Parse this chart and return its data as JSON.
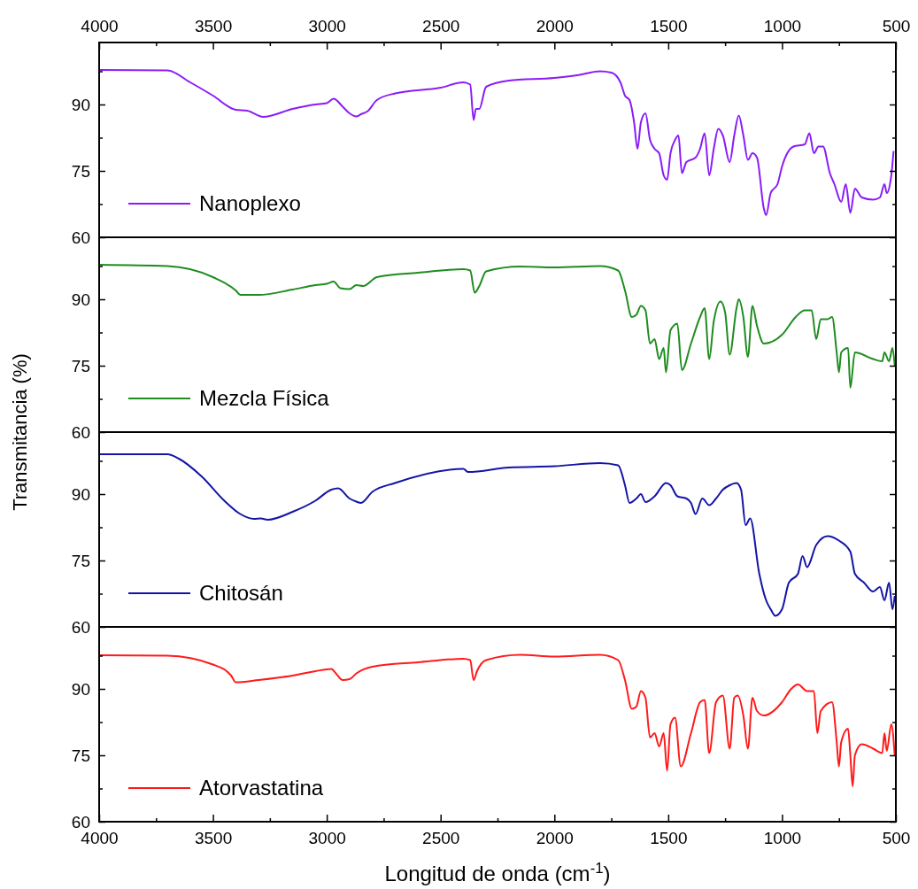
{
  "chart_data": [
    {
      "type": "line",
      "ylabel": "Transmitancia (%)",
      "xlim": [
        4000,
        500
      ],
      "ylim": [
        60,
        104
      ],
      "x2lim": [
        4000,
        500
      ],
      "x2ticks": [
        4000,
        {
          "value": 3750,
          "label": null
        },
        3500,
        {
          "value": 3250,
          "label": null
        },
        3000,
        {
          "value": 2750,
          "label": null
        },
        2500,
        {
          "value": 2250,
          "label": null
        },
        2000,
        {
          "value": 1750,
          "label": null
        },
        1500,
        {
          "value": 1250,
          "label": null
        },
        1000,
        {
          "value": 750,
          "label": null
        },
        500
      ],
      "yticks": [
        60,
        {
          "value": 67.5,
          "label": null
        },
        75,
        {
          "value": 82.5,
          "label": null
        },
        90,
        {
          "value": 97.5,
          "label": null
        }
      ],
      "tick_labels": "y",
      "legend": "bottom left",
      "grid": false,
      "x": [
        4000,
        3700,
        3600,
        3500,
        3400,
        3350,
        3280,
        3150,
        3050,
        3000,
        2970,
        2930,
        2900,
        2870,
        2850,
        2820,
        2780,
        2700,
        2500,
        2400,
        2370,
        2355,
        2345,
        2330,
        2300,
        2200,
        2000,
        1900,
        1800,
        1750,
        1710,
        1690,
        1670,
        1650,
        1635,
        1620,
        1600,
        1580,
        1560,
        1540,
        1520,
        1505,
        1490,
        1470,
        1455,
        1440,
        1420,
        1380,
        1360,
        1340,
        1320,
        1300,
        1280,
        1260,
        1230,
        1210,
        1190,
        1170,
        1150,
        1130,
        1110,
        1080,
        1070,
        1050,
        1020,
        1000,
        950,
        900,
        880,
        860,
        840,
        820,
        790,
        770,
        740,
        720,
        700,
        680,
        650,
        600,
        570,
        550,
        540,
        520,
        510
      ],
      "series": [
        {
          "name": "Nanoplexo",
          "color": "#8a1cf7",
          "values": [
            97.8,
            97.7,
            95,
            92,
            88.8,
            88.6,
            87.2,
            89,
            90,
            90.3,
            91.3,
            89.5,
            88,
            87.3,
            87.8,
            88.5,
            91,
            92.5,
            93.8,
            95,
            94.5,
            86.5,
            89,
            89,
            94,
            95.4,
            96,
            96.6,
            97.5,
            97.2,
            95,
            92,
            91,
            86,
            80,
            86,
            88,
            82,
            80,
            79,
            74,
            73,
            79,
            82,
            83,
            74.5,
            77,
            78,
            80,
            83.5,
            74,
            80,
            84.5,
            83,
            77,
            83,
            87.5,
            83,
            77.5,
            79,
            78,
            66.5,
            65,
            70,
            72,
            76,
            80.5,
            81,
            83.5,
            79,
            80.5,
            80.5,
            74.5,
            72,
            68,
            72,
            65.5,
            71,
            69,
            68.5,
            69,
            72,
            70,
            74,
            79.5
          ]
        }
      ]
    },
    {
      "type": "line",
      "xlim": [
        4000,
        500
      ],
      "ylim": [
        60,
        104
      ],
      "yticks": [
        60,
        {
          "value": 67.5,
          "label": null
        },
        75,
        {
          "value": 82.5,
          "label": null
        },
        90,
        {
          "value": 97.5,
          "label": null
        }
      ],
      "tick_labels": "y",
      "legend": "bottom left",
      "grid": false,
      "x": [
        4000,
        3700,
        3500,
        3400,
        3380,
        3300,
        3150,
        3050,
        3000,
        2970,
        2940,
        2900,
        2870,
        2840,
        2780,
        2600,
        2400,
        2370,
        2350,
        2330,
        2300,
        2150,
        2000,
        1800,
        1720,
        1690,
        1660,
        1640,
        1620,
        1600,
        1580,
        1560,
        1540,
        1520,
        1510,
        1490,
        1460,
        1440,
        1400,
        1360,
        1340,
        1320,
        1300,
        1270,
        1250,
        1230,
        1200,
        1190,
        1170,
        1150,
        1130,
        1110,
        1080,
        1000,
        940,
        900,
        870,
        850,
        830,
        800,
        780,
        760,
        750,
        740,
        710,
        700,
        680,
        600,
        560,
        550,
        530,
        515,
        505
      ],
      "series": [
        {
          "name": "Mezcla Física",
          "color": "#1f8c1f",
          "values": [
            97.8,
            97.5,
            95,
            92,
            91,
            91,
            92.2,
            93.2,
            93.5,
            94,
            92.5,
            92.3,
            93.2,
            93,
            95,
            96,
            96.8,
            96.5,
            91.5,
            93,
            96.3,
            97.4,
            97.2,
            97.5,
            96.5,
            92,
            86,
            86.5,
            88.5,
            87.5,
            80,
            81,
            76.5,
            79,
            73.5,
            83,
            84.5,
            74,
            80,
            86,
            88,
            76.5,
            85,
            89.5,
            87,
            77.5,
            88,
            90,
            86,
            77,
            88.5,
            84,
            80,
            82,
            86,
            87.5,
            87.5,
            81,
            85.5,
            85.5,
            86,
            78,
            73.5,
            78,
            79,
            70,
            78,
            76.5,
            76,
            78,
            76,
            79,
            75
          ]
        }
      ]
    },
    {
      "type": "line",
      "xlim": [
        4000,
        500
      ],
      "ylim": [
        60,
        104
      ],
      "yticks": [
        60,
        {
          "value": 67.5,
          "label": null
        },
        75,
        {
          "value": 82.5,
          "label": null
        },
        90,
        {
          "value": 97.5,
          "label": null
        }
      ],
      "tick_labels": "y",
      "legend": "bottom left",
      "grid": false,
      "x": [
        4000,
        3700,
        3650,
        3550,
        3450,
        3380,
        3320,
        3290,
        3260,
        3150,
        3050,
        2980,
        2950,
        2900,
        2870,
        2850,
        2800,
        2700,
        2400,
        2380,
        2200,
        2000,
        1800,
        1720,
        1690,
        1670,
        1640,
        1620,
        1600,
        1560,
        1510,
        1490,
        1460,
        1420,
        1400,
        1380,
        1350,
        1320,
        1290,
        1260,
        1230,
        1200,
        1180,
        1160,
        1140,
        1100,
        1070,
        1050,
        1030,
        1000,
        970,
        930,
        910,
        890,
        850,
        800,
        750,
        700,
        680,
        640,
        600,
        570,
        550,
        530,
        515,
        505
      ],
      "series": [
        {
          "name": "Chitosán",
          "color": "#1414a6",
          "values": [
            99,
            99,
            98,
            94,
            88.5,
            85.5,
            84.4,
            84.5,
            84.2,
            86,
            88.5,
            91,
            91.3,
            89,
            88.3,
            88,
            90.5,
            92.5,
            95.7,
            95,
            96,
            96.3,
            97,
            96.5,
            92,
            88,
            89,
            90,
            88.2,
            89.5,
            92.5,
            92,
            89.5,
            89,
            88,
            85.5,
            89,
            87.5,
            89,
            91,
            92,
            92.5,
            91,
            83,
            84.5,
            72,
            66,
            64,
            62.5,
            64,
            70,
            72,
            76,
            73.5,
            78.5,
            80.5,
            79.5,
            77,
            72,
            70,
            68,
            69,
            66,
            70,
            64,
            67
          ]
        }
      ]
    },
    {
      "type": "line",
      "xlabel": "Longitud de onda (cm$^{-1}$)",
      "xlim": [
        4000,
        500
      ],
      "ylim": [
        60,
        104
      ],
      "xticks": [
        4000,
        {
          "value": 3750,
          "label": null
        },
        3500,
        {
          "value": 3250,
          "label": null
        },
        3000,
        {
          "value": 2750,
          "label": null
        },
        2500,
        {
          "value": 2250,
          "label": null
        },
        2000,
        {
          "value": 1750,
          "label": null
        },
        1500,
        {
          "value": 1250,
          "label": null
        },
        1000,
        {
          "value": 750,
          "label": null
        },
        500
      ],
      "yticks": [
        60,
        {
          "value": 67.5,
          "label": null
        },
        75,
        {
          "value": 82.5,
          "label": null
        },
        90,
        {
          "value": 97.5,
          "label": null
        }
      ],
      "legend": "bottom left",
      "grid": false,
      "x": [
        4000,
        3700,
        3500,
        3420,
        3400,
        3300,
        3150,
        3050,
        2980,
        2960,
        2930,
        2900,
        2870,
        2800,
        2600,
        2400,
        2370,
        2355,
        2340,
        2300,
        2150,
        2000,
        1800,
        1720,
        1690,
        1660,
        1640,
        1620,
        1600,
        1580,
        1560,
        1540,
        1520,
        1505,
        1490,
        1470,
        1445,
        1400,
        1360,
        1340,
        1320,
        1290,
        1260,
        1230,
        1210,
        1195,
        1170,
        1150,
        1130,
        1110,
        1080,
        1000,
        960,
        930,
        890,
        860,
        845,
        830,
        780,
        760,
        750,
        740,
        710,
        700,
        690,
        680,
        650,
        600,
        560,
        550,
        540,
        520,
        505
      ],
      "series": [
        {
          "name": "Atorvastatina",
          "color": "#ff1a1a",
          "values": [
            97.6,
            97.5,
            95.5,
            93,
            91.5,
            92,
            93,
            94,
            94.5,
            93.5,
            92,
            92.2,
            93.5,
            95,
            96,
            96.8,
            96.5,
            92,
            94,
            96.5,
            97.7,
            97.3,
            97.7,
            96.5,
            92,
            85.5,
            86,
            89.5,
            88,
            79,
            80,
            77,
            80,
            71.5,
            82,
            83.5,
            72.5,
            80,
            87,
            87.5,
            75.5,
            87,
            88.5,
            76.5,
            88,
            88.5,
            84,
            76.5,
            88,
            85,
            84,
            87,
            90,
            91,
            89.5,
            89.5,
            80,
            85,
            87,
            78,
            72.5,
            78,
            81,
            75,
            68,
            75,
            77.5,
            76.5,
            75.5,
            80,
            76,
            82,
            75
          ]
        }
      ]
    }
  ]
}
